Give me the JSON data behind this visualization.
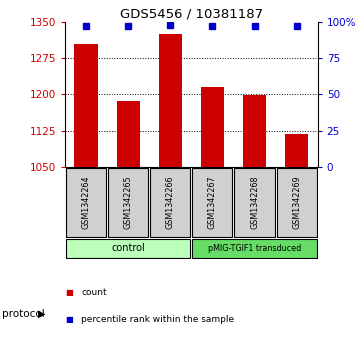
{
  "title": "GDS5456 / 10381187",
  "samples": [
    "GSM1342264",
    "GSM1342265",
    "GSM1342266",
    "GSM1342267",
    "GSM1342268",
    "GSM1342269"
  ],
  "counts": [
    1305,
    1187,
    1325,
    1215,
    1198,
    1118
  ],
  "percentiles": [
    97,
    97,
    98,
    97,
    97,
    97
  ],
  "ylim_left": [
    1050,
    1350
  ],
  "ylim_right": [
    0,
    100
  ],
  "yticks_left": [
    1050,
    1125,
    1200,
    1275,
    1350
  ],
  "yticks_right": [
    0,
    25,
    50,
    75,
    100
  ],
  "bar_color": "#cc0000",
  "dot_color": "#0000cc",
  "groups": [
    {
      "label": "control",
      "indices": [
        0,
        1,
        2
      ],
      "color": "#bbffbb"
    },
    {
      "label": "pMIG-TGIF1 transduced",
      "indices": [
        3,
        4,
        5
      ],
      "color": "#66dd66"
    }
  ],
  "protocol_label": "protocol",
  "legend_count_label": "count",
  "legend_percentile_label": "percentile rank within the sample",
  "background_color": "#ffffff",
  "label_area_color": "#d0d0d0"
}
